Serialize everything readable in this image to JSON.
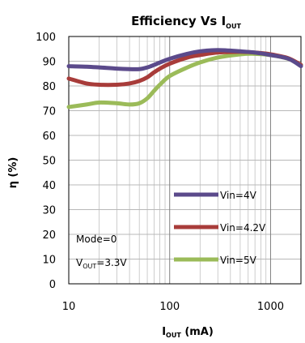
{
  "chart_data": {
    "type": "line",
    "title": "Efficiency Vs I",
    "title_subscript": "OUT",
    "xlabel": "I",
    "xlabel_subscript": "OUT",
    "xlabel_unit": " (mA)",
    "ylabel": "η (%)",
    "xscale": "log",
    "xlim": [
      10,
      2000
    ],
    "ylim": [
      0,
      100
    ],
    "x_ticks": [
      10,
      100,
      1000
    ],
    "x_tick_labels": [
      "10",
      "100",
      "1000"
    ],
    "y_ticks": [
      0,
      10,
      20,
      30,
      40,
      50,
      60,
      70,
      80,
      90,
      100
    ],
    "y_tick_labels": [
      "0",
      "10",
      "20",
      "30",
      "40",
      "50",
      "60",
      "70",
      "80",
      "90",
      "100"
    ],
    "grid": true,
    "legend_position": "bottom-right",
    "series": [
      {
        "name": "Vin=4V",
        "color": "#5b4a8b",
        "x": [
          10,
          15,
          20,
          30,
          40,
          50,
          60,
          70,
          80,
          100,
          150,
          200,
          300,
          500,
          700,
          1000,
          1500,
          2000
        ],
        "y": [
          88,
          87.8,
          87.5,
          87,
          86.8,
          86.8,
          87.5,
          88.5,
          89.5,
          91,
          93,
          94,
          94.5,
          94,
          93.5,
          92.5,
          91,
          88
        ]
      },
      {
        "name": "Vin=4.2V",
        "color": "#a83c3a",
        "x": [
          10,
          15,
          20,
          30,
          40,
          50,
          60,
          70,
          80,
          100,
          150,
          200,
          300,
          500,
          700,
          1000,
          1500,
          2000
        ],
        "y": [
          83,
          81,
          80.5,
          80.5,
          81,
          82,
          83.5,
          85.5,
          87,
          89,
          91.5,
          92.5,
          93.5,
          93.8,
          93.5,
          92.8,
          91.2,
          88.5
        ]
      },
      {
        "name": "Vin=5V",
        "color": "#9bbb59",
        "x": [
          10,
          15,
          20,
          30,
          40,
          50,
          60,
          70,
          80,
          100,
          150,
          200,
          300,
          500,
          700,
          1000,
          1500,
          2000
        ],
        "y": [
          71.5,
          72.5,
          73.3,
          73,
          72.5,
          73,
          75,
          78,
          80.5,
          84,
          87.5,
          89.5,
          91.5,
          92.8,
          93,
          92.5,
          91,
          88.5
        ]
      }
    ],
    "annotation_lines": [
      {
        "text": "Mode=0"
      },
      {
        "text": "V",
        "subscript": "OUT",
        "suffix": "=3.3V"
      }
    ]
  }
}
